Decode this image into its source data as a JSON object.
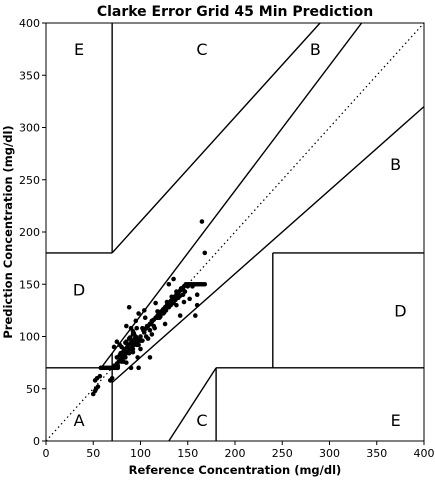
{
  "chart_data": {
    "type": "scatter",
    "title": "Clarke Error Grid 45 Min Prediction",
    "xlabel": "Reference Concentration (mg/dl)",
    "ylabel": "Prediction Concentration (mg/dl)",
    "xlim": [
      0,
      400
    ],
    "ylim": [
      0,
      400
    ],
    "xticks": [
      0,
      50,
      100,
      150,
      200,
      250,
      300,
      350,
      400
    ],
    "yticks": [
      0,
      50,
      100,
      150,
      200,
      250,
      300,
      350,
      400
    ],
    "grid": false,
    "zone_boundaries": [
      {
        "from": [
          70,
          400
        ],
        "to": [
          70,
          180
        ]
      },
      {
        "from": [
          70,
          180
        ],
        "to": [
          290,
          400
        ]
      },
      {
        "from": [
          0,
          180
        ],
        "to": [
          70,
          180
        ]
      },
      {
        "from": [
          70,
          84
        ],
        "to": [
          70,
          0
        ]
      },
      {
        "from": [
          0,
          70
        ],
        "to": [
          58.33,
          70
        ]
      },
      {
        "from": [
          58.33,
          70
        ],
        "to": [
          334,
          400
        ]
      },
      {
        "from": [
          70,
          56
        ],
        "to": [
          400,
          320
        ]
      },
      {
        "from": [
          130,
          0
        ],
        "to": [
          180,
          70
        ]
      },
      {
        "from": [
          180,
          70
        ],
        "to": [
          400,
          70
        ]
      },
      {
        "from": [
          180,
          70
        ],
        "to": [
          180,
          0
        ]
      },
      {
        "from": [
          240,
          70
        ],
        "to": [
          240,
          180
        ]
      },
      {
        "from": [
          240,
          180
        ],
        "to": [
          400,
          180
        ]
      }
    ],
    "identity_line": {
      "from": [
        0,
        0
      ],
      "to": [
        400,
        400
      ],
      "style": "dotted"
    },
    "zone_labels": [
      {
        "text": "E",
        "x": 35,
        "y": 375
      },
      {
        "text": "C",
        "x": 165,
        "y": 375
      },
      {
        "text": "B",
        "x": 285,
        "y": 375
      },
      {
        "text": "B",
        "x": 370,
        "y": 265
      },
      {
        "text": "D",
        "x": 35,
        "y": 145
      },
      {
        "text": "D",
        "x": 375,
        "y": 125
      },
      {
        "text": "A",
        "x": 35,
        "y": 20
      },
      {
        "text": "C",
        "x": 165,
        "y": 20
      },
      {
        "text": "E",
        "x": 370,
        "y": 20
      }
    ],
    "series": [
      {
        "points": [
          [
            50,
            45
          ],
          [
            52,
            48
          ],
          [
            53,
            50
          ],
          [
            55,
            52
          ],
          [
            52,
            58
          ],
          [
            54,
            60
          ],
          [
            57,
            62
          ],
          [
            58,
            70
          ],
          [
            60,
            70
          ],
          [
            62,
            70
          ],
          [
            64,
            70
          ],
          [
            66,
            70
          ],
          [
            68,
            70
          ],
          [
            70,
            70
          ],
          [
            72,
            70
          ],
          [
            74,
            70
          ],
          [
            76,
            70
          ],
          [
            72,
            72
          ],
          [
            75,
            74
          ],
          [
            77,
            76
          ],
          [
            79,
            78
          ],
          [
            81,
            80
          ],
          [
            83,
            82
          ],
          [
            85,
            84
          ],
          [
            87,
            86
          ],
          [
            89,
            88
          ],
          [
            91,
            90
          ],
          [
            93,
            92
          ],
          [
            95,
            94
          ],
          [
            97,
            96
          ],
          [
            99,
            98
          ],
          [
            78,
            82
          ],
          [
            82,
            86
          ],
          [
            86,
            90
          ],
          [
            90,
            94
          ],
          [
            94,
            98
          ],
          [
            80,
            76
          ],
          [
            84,
            80
          ],
          [
            88,
            84
          ],
          [
            92,
            88
          ],
          [
            96,
            92
          ],
          [
            100,
            96
          ],
          [
            75,
            80
          ],
          [
            79,
            84
          ],
          [
            83,
            88
          ],
          [
            87,
            92
          ],
          [
            91,
            96
          ],
          [
            95,
            100
          ],
          [
            85,
            95
          ],
          [
            89,
            99
          ],
          [
            93,
            103
          ],
          [
            80,
            90
          ],
          [
            84,
            94
          ],
          [
            88,
            98
          ],
          [
            92,
            102
          ],
          [
            96,
            98
          ],
          [
            100,
            100
          ],
          [
            104,
            104
          ],
          [
            106,
            108
          ],
          [
            108,
            110
          ],
          [
            110,
            112
          ],
          [
            112,
            114
          ],
          [
            114,
            116
          ],
          [
            116,
            118
          ],
          [
            118,
            120
          ],
          [
            120,
            122
          ],
          [
            122,
            124
          ],
          [
            124,
            126
          ],
          [
            126,
            128
          ],
          [
            128,
            130
          ],
          [
            130,
            132
          ],
          [
            132,
            134
          ],
          [
            134,
            136
          ],
          [
            136,
            138
          ],
          [
            138,
            140
          ],
          [
            140,
            142
          ],
          [
            142,
            144
          ],
          [
            144,
            146
          ],
          [
            146,
            148
          ],
          [
            148,
            150
          ],
          [
            150,
            150
          ],
          [
            152,
            150
          ],
          [
            154,
            150
          ],
          [
            156,
            150
          ],
          [
            158,
            150
          ],
          [
            160,
            150
          ],
          [
            162,
            150
          ],
          [
            164,
            150
          ],
          [
            166,
            150
          ],
          [
            168,
            150
          ],
          [
            125,
            123
          ],
          [
            130,
            128
          ],
          [
            135,
            132
          ],
          [
            140,
            137
          ],
          [
            145,
            140
          ],
          [
            128,
            133
          ],
          [
            133,
            138
          ],
          [
            138,
            143
          ],
          [
            143,
            146
          ],
          [
            118,
            118
          ],
          [
            121,
            119
          ],
          [
            124,
            122
          ],
          [
            127,
            125
          ],
          [
            132,
            130
          ],
          [
            137,
            135
          ],
          [
            142,
            139
          ],
          [
            147,
            143
          ],
          [
            110,
            112
          ],
          [
            107,
            110
          ],
          [
            112,
            115
          ],
          [
            103,
            106
          ],
          [
            106,
            100
          ],
          [
            110,
            106
          ],
          [
            114,
            110
          ],
          [
            102,
            96
          ],
          [
            98,
            92
          ],
          [
            72,
            90
          ],
          [
            75,
            95
          ],
          [
            78,
            92
          ],
          [
            85,
            110
          ],
          [
            90,
            108
          ],
          [
            88,
            128
          ],
          [
            95,
            115
          ],
          [
            98,
            122
          ],
          [
            105,
            118
          ],
          [
            120,
            118
          ],
          [
            142,
            120
          ],
          [
            165,
            210
          ],
          [
            168,
            180
          ],
          [
            160,
            130
          ],
          [
            158,
            120
          ],
          [
            145,
            145
          ],
          [
            150,
            148
          ],
          [
            155,
            148
          ],
          [
            160,
            140
          ],
          [
            138,
            130
          ],
          [
            112,
            102
          ],
          [
            115,
            108
          ],
          [
            108,
            98
          ],
          [
            100,
            88
          ],
          [
            97,
            80
          ],
          [
            92,
            85
          ],
          [
            82,
            76
          ],
          [
            76,
            72
          ],
          [
            90,
            70
          ],
          [
            98,
            70
          ],
          [
            110,
            80
          ],
          [
            85,
            75
          ],
          [
            102,
            108
          ],
          [
            70,
            60
          ],
          [
            68,
            58
          ],
          [
            116,
            132
          ],
          [
            104,
            125
          ],
          [
            92,
            105
          ],
          [
            96,
            108
          ],
          [
            118,
            124
          ],
          [
            146,
            133
          ],
          [
            152,
            136
          ],
          [
            126,
            112
          ],
          [
            130,
            150
          ],
          [
            135,
            155
          ]
        ]
      }
    ]
  }
}
